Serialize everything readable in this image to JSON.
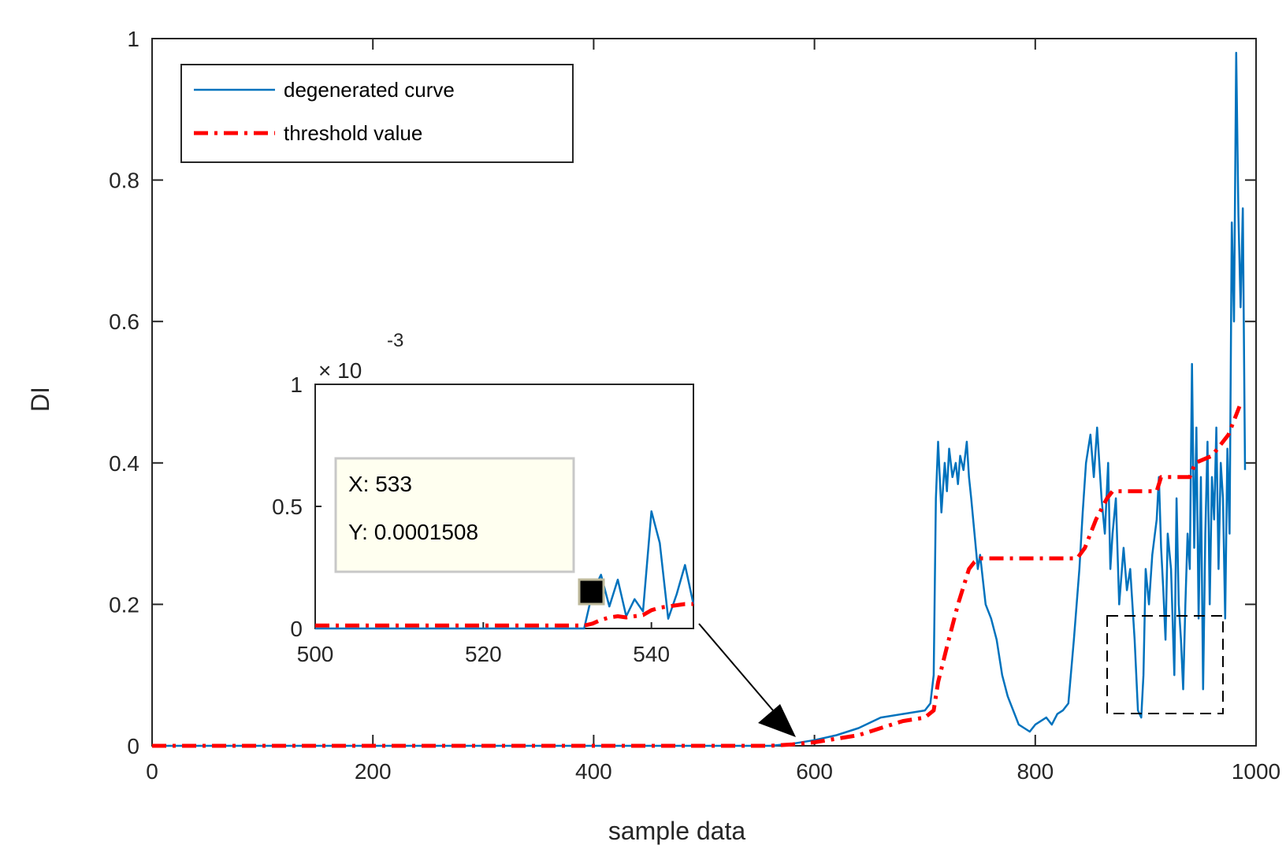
{
  "chart_data": [
    {
      "type": "line",
      "title": "",
      "xlabel": "sample data",
      "ylabel": "DI",
      "xlim": [
        0,
        1000
      ],
      "ylim": [
        0,
        1
      ],
      "xticks": [
        0,
        200,
        400,
        600,
        800,
        1000
      ],
      "xtick_labels": [
        "0",
        "200",
        "400",
        "600",
        "800",
        "1000"
      ],
      "yticks": [
        0,
        0.2,
        0.4,
        0.6,
        0.8,
        1
      ],
      "ytick_labels": [
        "0",
        "0.2",
        "0.4",
        "0.6",
        "0.8",
        "1"
      ],
      "grid": false,
      "legend_position": "top-left",
      "series": [
        {
          "name": "degenerated curve",
          "color": "#0072BD",
          "style": "solid",
          "x": [
            0,
            560,
            580,
            600,
            620,
            640,
            660,
            680,
            700,
            705,
            708,
            710,
            712,
            715,
            718,
            720,
            722,
            725,
            728,
            730,
            732,
            735,
            738,
            740,
            742,
            745,
            748,
            750,
            755,
            760,
            765,
            770,
            775,
            780,
            785,
            790,
            795,
            800,
            805,
            810,
            815,
            820,
            825,
            830,
            835,
            840,
            843,
            846,
            850,
            853,
            856,
            860,
            863,
            866,
            868,
            870,
            873,
            876,
            880,
            883,
            886,
            890,
            893,
            896,
            898,
            900,
            903,
            906,
            910,
            912,
            914,
            916,
            918,
            920,
            923,
            926,
            928,
            930,
            932,
            934,
            936,
            938,
            940,
            942,
            944,
            946,
            948,
            950,
            952,
            954,
            956,
            958,
            960,
            962,
            964,
            966,
            968,
            970,
            972,
            974,
            976,
            978,
            980,
            982,
            984,
            986,
            988,
            990
          ],
          "y": [
            0.0,
            0.0,
            0.003,
            0.008,
            0.015,
            0.025,
            0.04,
            0.045,
            0.05,
            0.06,
            0.1,
            0.35,
            0.43,
            0.33,
            0.4,
            0.36,
            0.42,
            0.38,
            0.4,
            0.37,
            0.41,
            0.39,
            0.43,
            0.38,
            0.35,
            0.3,
            0.25,
            0.27,
            0.2,
            0.18,
            0.15,
            0.1,
            0.07,
            0.05,
            0.03,
            0.025,
            0.02,
            0.03,
            0.035,
            0.04,
            0.03,
            0.045,
            0.05,
            0.06,
            0.15,
            0.25,
            0.33,
            0.4,
            0.44,
            0.38,
            0.45,
            0.35,
            0.3,
            0.4,
            0.25,
            0.3,
            0.35,
            0.2,
            0.28,
            0.22,
            0.25,
            0.15,
            0.05,
            0.04,
            0.1,
            0.25,
            0.2,
            0.27,
            0.32,
            0.38,
            0.28,
            0.22,
            0.15,
            0.3,
            0.25,
            0.1,
            0.35,
            0.2,
            0.15,
            0.08,
            0.2,
            0.3,
            0.25,
            0.54,
            0.28,
            0.45,
            0.18,
            0.38,
            0.08,
            0.3,
            0.43,
            0.2,
            0.38,
            0.32,
            0.45,
            0.25,
            0.4,
            0.35,
            0.18,
            0.42,
            0.3,
            0.74,
            0.6,
            0.98,
            0.75,
            0.62,
            0.76,
            0.39
          ]
        },
        {
          "name": "threshold value",
          "color": "#FF0000",
          "style": "dash-dot",
          "x": [
            0,
            560,
            580,
            600,
            620,
            640,
            660,
            680,
            700,
            708,
            712,
            720,
            730,
            740,
            745,
            750,
            770,
            800,
            838,
            845,
            855,
            865,
            870,
            910,
            914,
            940,
            945,
            960,
            975,
            985
          ],
          "y": [
            0.0,
            0.0,
            0.002,
            0.005,
            0.01,
            0.015,
            0.025,
            0.035,
            0.04,
            0.05,
            0.09,
            0.14,
            0.2,
            0.25,
            0.26,
            0.265,
            0.265,
            0.265,
            0.265,
            0.28,
            0.32,
            0.35,
            0.36,
            0.36,
            0.38,
            0.38,
            0.4,
            0.41,
            0.44,
            0.48
          ]
        }
      ]
    },
    {
      "type": "line",
      "title": "",
      "xlabel": "",
      "ylabel": "",
      "xlim": [
        500,
        545
      ],
      "ylim": [
        0,
        1
      ],
      "y_exponent_label": "× 10",
      "y_exponent_power": "-3",
      "xticks": [
        500,
        520,
        540
      ],
      "xtick_labels": [
        "500",
        "520",
        "540"
      ],
      "yticks": [
        0,
        0.5,
        1
      ],
      "ytick_labels": [
        "0",
        "0.5",
        "1"
      ],
      "grid": false,
      "series": [
        {
          "name": "degenerated curve",
          "color": "#0072BD",
          "style": "solid",
          "x": [
            500,
            532,
            533,
            534,
            535,
            536,
            537,
            538,
            539,
            540,
            541,
            542,
            543,
            544,
            545
          ],
          "y": [
            0.0,
            0.0,
            0.15,
            0.22,
            0.09,
            0.2,
            0.05,
            0.12,
            0.07,
            0.48,
            0.35,
            0.04,
            0.14,
            0.26,
            0.1
          ]
        },
        {
          "name": "threshold value",
          "color": "#FF0000",
          "style": "dash-dot",
          "x": [
            500,
            532,
            533,
            534,
            535,
            536,
            537,
            538,
            539,
            540,
            541,
            542,
            543,
            544,
            545
          ],
          "y": [
            0.012,
            0.012,
            0.02,
            0.035,
            0.045,
            0.05,
            0.045,
            0.05,
            0.055,
            0.075,
            0.085,
            0.09,
            0.095,
            0.1,
            0.1
          ]
        }
      ]
    }
  ],
  "datatip": {
    "x_label": "X: 533",
    "y_label": "Y: 0.0001508"
  }
}
